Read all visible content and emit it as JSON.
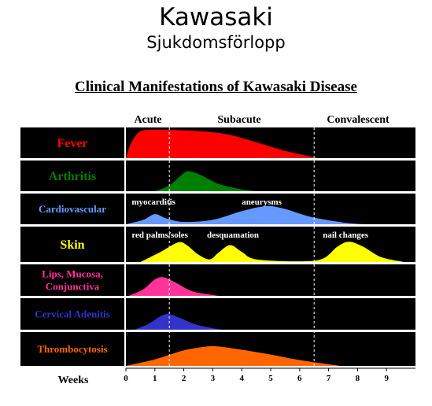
{
  "header": {
    "title": "Kawasaki",
    "subtitle": "Sjukdomsförlopp"
  },
  "chart_data": {
    "type": "area",
    "title": "Clinical Manifestations of Kawasaki Disease",
    "xlabel": "Weeks",
    "xlim": [
      0,
      10
    ],
    "x_ticks": [
      0,
      1,
      2,
      3,
      4,
      5,
      6,
      7,
      8,
      9
    ],
    "phases": [
      {
        "label": "Acute",
        "start": 0,
        "end": 1.5
      },
      {
        "label": "Subacute",
        "start": 1.5,
        "end": 6.5
      },
      {
        "label": "Convalescent",
        "start": 6.5,
        "end": 10
      }
    ],
    "phase_boundaries": [
      1.5,
      6.5
    ],
    "grid": false,
    "series": [
      {
        "name": "Fever",
        "color": "#ff0000",
        "points": [
          [
            0,
            0
          ],
          [
            0.15,
            0.45
          ],
          [
            0.4,
            0.85
          ],
          [
            0.7,
            0.97
          ],
          [
            1.5,
            0.97
          ],
          [
            2.5,
            0.93
          ],
          [
            3.5,
            0.82
          ],
          [
            4.5,
            0.55
          ],
          [
            5.5,
            0.25
          ],
          [
            6.4,
            0.05
          ],
          [
            6.6,
            0
          ]
        ],
        "annotations": []
      },
      {
        "name": "Arthritis",
        "color": "#008000",
        "points": [
          [
            1.0,
            0
          ],
          [
            1.5,
            0.2
          ],
          [
            2.0,
            0.62
          ],
          [
            2.2,
            0.68
          ],
          [
            2.6,
            0.55
          ],
          [
            3.2,
            0.25
          ],
          [
            4.0,
            0.06
          ],
          [
            4.5,
            0
          ]
        ],
        "annotations": []
      },
      {
        "name": "Cardiovascular",
        "color": "#6699ff",
        "points": [
          [
            0,
            0
          ],
          [
            0.6,
            0.15
          ],
          [
            1.0,
            0.35
          ],
          [
            1.4,
            0.2
          ],
          [
            2.0,
            0.08
          ],
          [
            3.0,
            0.15
          ],
          [
            4.0,
            0.45
          ],
          [
            4.8,
            0.62
          ],
          [
            5.4,
            0.55
          ],
          [
            6.4,
            0.25
          ],
          [
            7.5,
            0.06
          ],
          [
            8.2,
            0
          ]
        ],
        "annotations": [
          {
            "label": "myocarditis",
            "x": 0.2
          },
          {
            "label": "aneurysms",
            "x": 4.0
          }
        ]
      },
      {
        "name": "Skin",
        "color": "#ffff00",
        "points": [
          [
            0.5,
            0
          ],
          [
            1.2,
            0.3
          ],
          [
            1.8,
            0.58
          ],
          [
            2.1,
            0.5
          ],
          [
            2.5,
            0.22
          ],
          [
            2.9,
            0.08
          ],
          [
            3.2,
            0.28
          ],
          [
            3.6,
            0.5
          ],
          [
            4.0,
            0.3
          ],
          [
            4.5,
            0.08
          ],
          [
            6.0,
            0.02
          ],
          [
            6.8,
            0.1
          ],
          [
            7.3,
            0.45
          ],
          [
            7.7,
            0.6
          ],
          [
            8.2,
            0.45
          ],
          [
            8.8,
            0.15
          ],
          [
            9.6,
            0
          ]
        ],
        "annotations": [
          {
            "label": "red palms/soles",
            "x": 0.2
          },
          {
            "label": "desquamation",
            "x": 2.8
          },
          {
            "label": "nail changes",
            "x": 6.8
          }
        ]
      },
      {
        "name": "Lips, Mucosa, Conjunctiva",
        "color": "#ff3399",
        "points": [
          [
            0.1,
            0
          ],
          [
            0.6,
            0.22
          ],
          [
            1.0,
            0.55
          ],
          [
            1.3,
            0.62
          ],
          [
            1.7,
            0.45
          ],
          [
            2.3,
            0.15
          ],
          [
            3.0,
            0.03
          ],
          [
            3.2,
            0
          ]
        ],
        "annotations": []
      },
      {
        "name": "Cervical Adenitis",
        "color": "#3333cc",
        "points": [
          [
            0.3,
            0
          ],
          [
            0.8,
            0.2
          ],
          [
            1.2,
            0.45
          ],
          [
            1.5,
            0.52
          ],
          [
            1.9,
            0.38
          ],
          [
            2.4,
            0.18
          ],
          [
            3.0,
            0.05
          ],
          [
            3.3,
            0
          ]
        ],
        "annotations": []
      },
      {
        "name": "Thrombocytosis",
        "color": "#ff6600",
        "points": [
          [
            0,
            0
          ],
          [
            1.0,
            0.2
          ],
          [
            2.0,
            0.48
          ],
          [
            2.8,
            0.6
          ],
          [
            3.2,
            0.6
          ],
          [
            4.0,
            0.5
          ],
          [
            5.0,
            0.35
          ],
          [
            6.0,
            0.18
          ],
          [
            7.0,
            0.05
          ],
          [
            7.4,
            0
          ]
        ],
        "annotations": []
      }
    ],
    "row_labels": [
      {
        "lines": [
          "Fever"
        ],
        "color": "#ff0000"
      },
      {
        "lines": [
          "Arthritis"
        ],
        "color": "#008000"
      },
      {
        "lines": [
          "Cardiovascular"
        ],
        "color": "#6699ff"
      },
      {
        "lines": [
          "Skin"
        ],
        "color": "#ffff00"
      },
      {
        "lines": [
          "Lips, Mucosa,",
          "Conjunctiva"
        ],
        "color": "#ff3399"
      },
      {
        "lines": [
          "Cervical Adenitis"
        ],
        "color": "#3333cc"
      },
      {
        "lines": [
          "Thrombocytosis"
        ],
        "color": "#ff6600"
      }
    ]
  }
}
